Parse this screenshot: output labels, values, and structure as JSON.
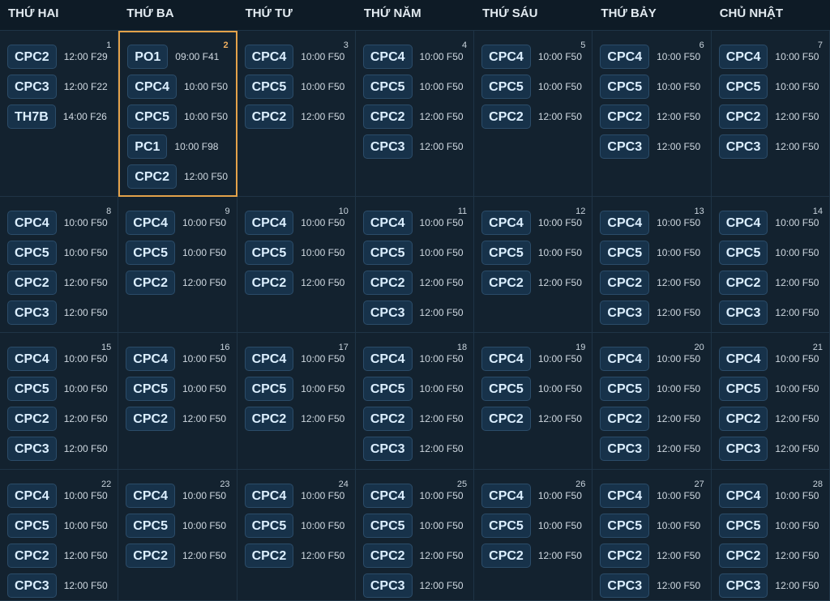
{
  "header": {
    "days": [
      "THỨ HAI",
      "THỨ BA",
      "THỨ TƯ",
      "THỨ NĂM",
      "THỨ SÁU",
      "THỨ BẢY",
      "CHỦ NHẬT"
    ]
  },
  "weeks": [
    {
      "days": [
        {
          "day": 1,
          "events": [
            [
              "CPC2",
              "12:00 F29"
            ],
            [
              "CPC3",
              "12:00 F22"
            ],
            [
              "TH7B",
              "14:00 F26"
            ]
          ]
        },
        {
          "day": 2,
          "selected": true,
          "events": [
            [
              "PO1",
              "09:00 F41"
            ],
            [
              "CPC4",
              "10:00 F50"
            ],
            [
              "CPC5",
              "10:00 F50"
            ],
            [
              "PC1",
              "10:00 F98"
            ],
            [
              "CPC2",
              "12:00 F50"
            ]
          ]
        },
        {
          "day": 3,
          "events": [
            [
              "CPC4",
              "10:00 F50"
            ],
            [
              "CPC5",
              "10:00 F50"
            ],
            [
              "CPC2",
              "12:00 F50"
            ]
          ]
        },
        {
          "day": 4,
          "events": [
            [
              "CPC4",
              "10:00 F50"
            ],
            [
              "CPC5",
              "10:00 F50"
            ],
            [
              "CPC2",
              "12:00 F50"
            ],
            [
              "CPC3",
              "12:00 F50"
            ]
          ]
        },
        {
          "day": 5,
          "events": [
            [
              "CPC4",
              "10:00 F50"
            ],
            [
              "CPC5",
              "10:00 F50"
            ],
            [
              "CPC2",
              "12:00 F50"
            ]
          ]
        },
        {
          "day": 6,
          "events": [
            [
              "CPC4",
              "10:00 F50"
            ],
            [
              "CPC5",
              "10:00 F50"
            ],
            [
              "CPC2",
              "12:00 F50"
            ],
            [
              "CPC3",
              "12:00 F50"
            ]
          ]
        },
        {
          "day": 7,
          "events": [
            [
              "CPC4",
              "10:00 F50"
            ],
            [
              "CPC5",
              "10:00 F50"
            ],
            [
              "CPC2",
              "12:00 F50"
            ],
            [
              "CPC3",
              "12:00 F50"
            ]
          ]
        }
      ]
    },
    {
      "days": [
        {
          "day": 8,
          "events": [
            [
              "CPC4",
              "10:00 F50"
            ],
            [
              "CPC5",
              "10:00 F50"
            ],
            [
              "CPC2",
              "12:00 F50"
            ],
            [
              "CPC3",
              "12:00 F50"
            ]
          ]
        },
        {
          "day": 9,
          "events": [
            [
              "CPC4",
              "10:00 F50"
            ],
            [
              "CPC5",
              "10:00 F50"
            ],
            [
              "CPC2",
              "12:00 F50"
            ]
          ]
        },
        {
          "day": 10,
          "events": [
            [
              "CPC4",
              "10:00 F50"
            ],
            [
              "CPC5",
              "10:00 F50"
            ],
            [
              "CPC2",
              "12:00 F50"
            ]
          ]
        },
        {
          "day": 11,
          "events": [
            [
              "CPC4",
              "10:00 F50"
            ],
            [
              "CPC5",
              "10:00 F50"
            ],
            [
              "CPC2",
              "12:00 F50"
            ],
            [
              "CPC3",
              "12:00 F50"
            ]
          ]
        },
        {
          "day": 12,
          "events": [
            [
              "CPC4",
              "10:00 F50"
            ],
            [
              "CPC5",
              "10:00 F50"
            ],
            [
              "CPC2",
              "12:00 F50"
            ]
          ]
        },
        {
          "day": 13,
          "events": [
            [
              "CPC4",
              "10:00 F50"
            ],
            [
              "CPC5",
              "10:00 F50"
            ],
            [
              "CPC2",
              "12:00 F50"
            ],
            [
              "CPC3",
              "12:00 F50"
            ]
          ]
        },
        {
          "day": 14,
          "events": [
            [
              "CPC4",
              "10:00 F50"
            ],
            [
              "CPC5",
              "10:00 F50"
            ],
            [
              "CPC2",
              "12:00 F50"
            ],
            [
              "CPC3",
              "12:00 F50"
            ]
          ]
        }
      ]
    },
    {
      "days": [
        {
          "day": 15,
          "events": [
            [
              "CPC4",
              "10:00 F50"
            ],
            [
              "CPC5",
              "10:00 F50"
            ],
            [
              "CPC2",
              "12:00 F50"
            ],
            [
              "CPC3",
              "12:00 F50"
            ]
          ]
        },
        {
          "day": 16,
          "events": [
            [
              "CPC4",
              "10:00 F50"
            ],
            [
              "CPC5",
              "10:00 F50"
            ],
            [
              "CPC2",
              "12:00 F50"
            ]
          ]
        },
        {
          "day": 17,
          "events": [
            [
              "CPC4",
              "10:00 F50"
            ],
            [
              "CPC5",
              "10:00 F50"
            ],
            [
              "CPC2",
              "12:00 F50"
            ]
          ]
        },
        {
          "day": 18,
          "events": [
            [
              "CPC4",
              "10:00 F50"
            ],
            [
              "CPC5",
              "10:00 F50"
            ],
            [
              "CPC2",
              "12:00 F50"
            ],
            [
              "CPC3",
              "12:00 F50"
            ]
          ]
        },
        {
          "day": 19,
          "events": [
            [
              "CPC4",
              "10:00 F50"
            ],
            [
              "CPC5",
              "10:00 F50"
            ],
            [
              "CPC2",
              "12:00 F50"
            ]
          ]
        },
        {
          "day": 20,
          "events": [
            [
              "CPC4",
              "10:00 F50"
            ],
            [
              "CPC5",
              "10:00 F50"
            ],
            [
              "CPC2",
              "12:00 F50"
            ],
            [
              "CPC3",
              "12:00 F50"
            ]
          ]
        },
        {
          "day": 21,
          "events": [
            [
              "CPC4",
              "10:00 F50"
            ],
            [
              "CPC5",
              "10:00 F50"
            ],
            [
              "CPC2",
              "12:00 F50"
            ],
            [
              "CPC3",
              "12:00 F50"
            ]
          ]
        }
      ]
    },
    {
      "days": [
        {
          "day": 22,
          "events": [
            [
              "CPC4",
              "10:00 F50"
            ],
            [
              "CPC5",
              "10:00 F50"
            ],
            [
              "CPC2",
              "12:00 F50"
            ],
            [
              "CPC3",
              "12:00 F50"
            ]
          ]
        },
        {
          "day": 23,
          "events": [
            [
              "CPC4",
              "10:00 F50"
            ],
            [
              "CPC5",
              "10:00 F50"
            ],
            [
              "CPC2",
              "12:00 F50"
            ]
          ]
        },
        {
          "day": 24,
          "events": [
            [
              "CPC4",
              "10:00 F50"
            ],
            [
              "CPC5",
              "10:00 F50"
            ],
            [
              "CPC2",
              "12:00 F50"
            ]
          ]
        },
        {
          "day": 25,
          "events": [
            [
              "CPC4",
              "10:00 F50"
            ],
            [
              "CPC5",
              "10:00 F50"
            ],
            [
              "CPC2",
              "12:00 F50"
            ],
            [
              "CPC3",
              "12:00 F50"
            ]
          ]
        },
        {
          "day": 26,
          "events": [
            [
              "CPC4",
              "10:00 F50"
            ],
            [
              "CPC5",
              "10:00 F50"
            ],
            [
              "CPC2",
              "12:00 F50"
            ]
          ]
        },
        {
          "day": 27,
          "events": [
            [
              "CPC4",
              "10:00 F50"
            ],
            [
              "CPC5",
              "10:00 F50"
            ],
            [
              "CPC2",
              "12:00 F50"
            ],
            [
              "CPC3",
              "12:00 F50"
            ]
          ]
        },
        {
          "day": 28,
          "events": [
            [
              "CPC4",
              "10:00 F50"
            ],
            [
              "CPC5",
              "10:00 F50"
            ],
            [
              "CPC2",
              "12:00 F50"
            ],
            [
              "CPC3",
              "12:00 F50"
            ]
          ]
        }
      ]
    }
  ]
}
